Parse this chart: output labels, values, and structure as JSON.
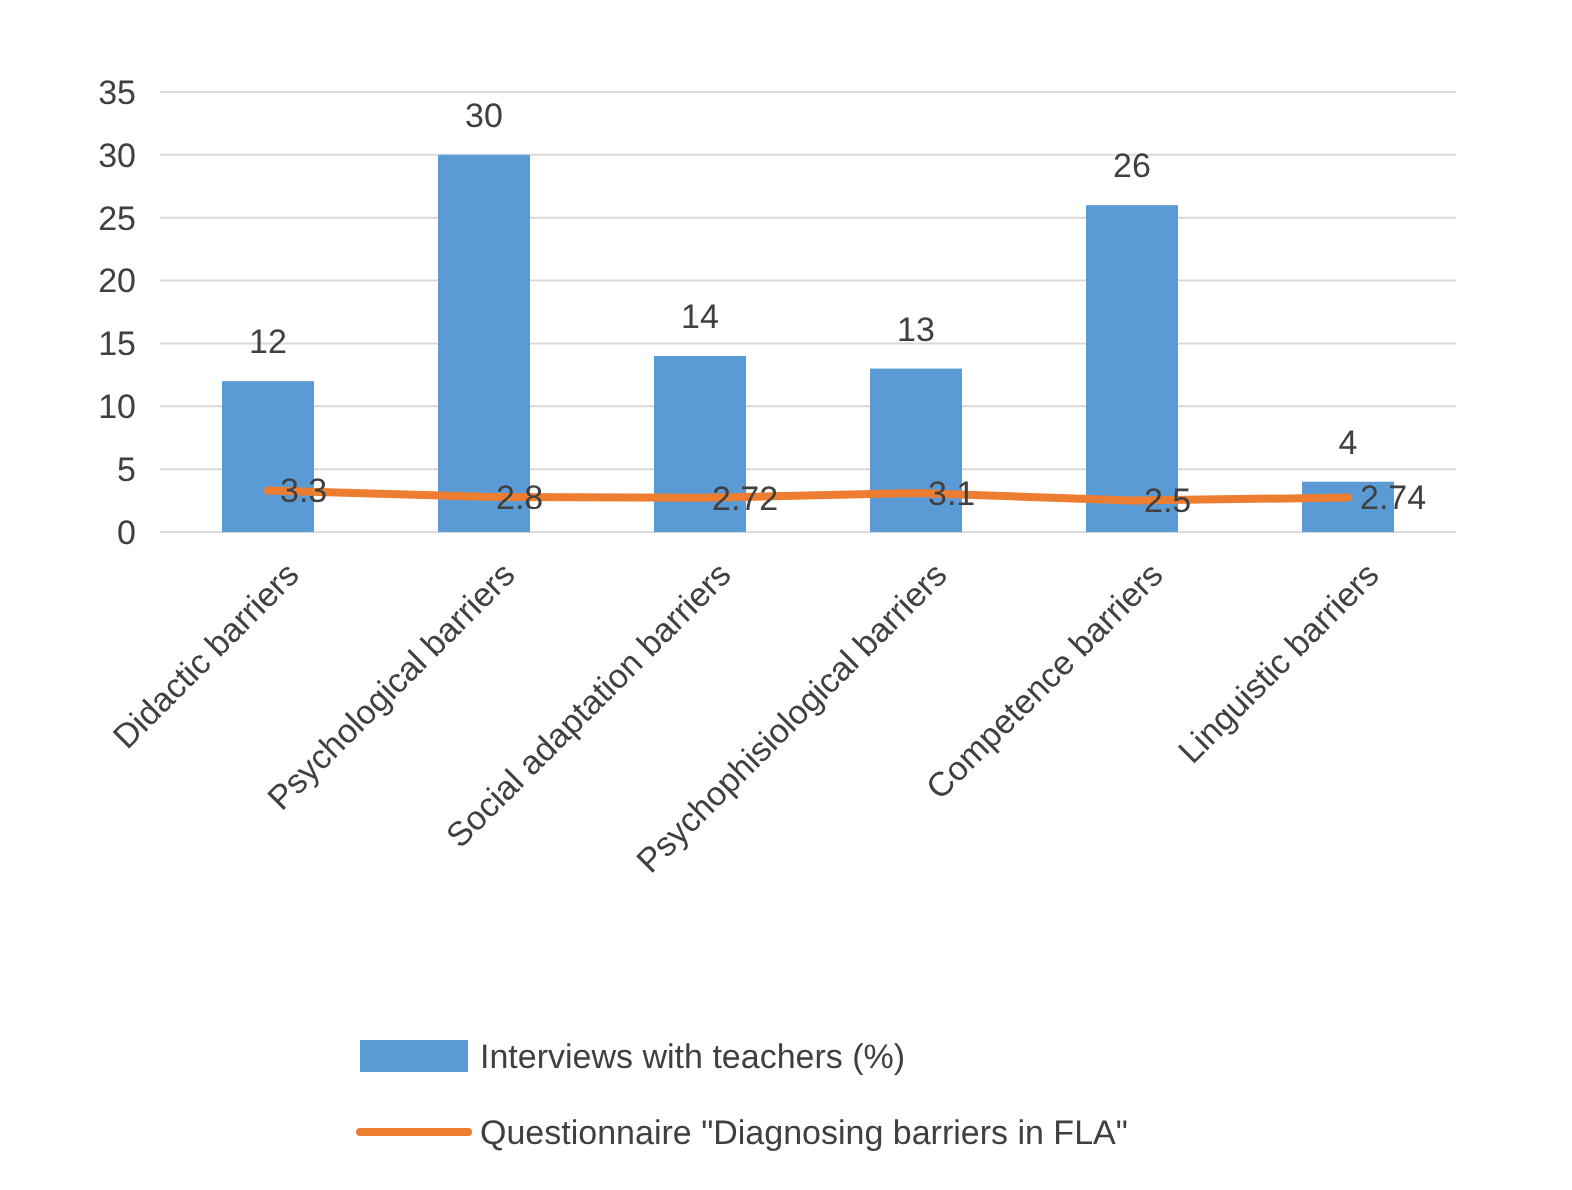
{
  "chart_data": {
    "type": "bar",
    "categories": [
      "Didactic barriers",
      "Psychological barriers",
      "Social adaptation barriers",
      "Psychophisiological barriers",
      "Competence barriers",
      "Linguistic barriers"
    ],
    "series": [
      {
        "name": "Interviews with teachers (%)",
        "color": "#5b9bd5",
        "values": [
          12,
          30,
          14,
          13,
          26,
          4
        ]
      },
      {
        "name": "Questionnaire \"Diagnosing barriers in FLA\"",
        "type": "line",
        "color": "#ed7d31",
        "values": [
          3.3,
          2.8,
          2.72,
          3.1,
          2.5,
          2.74
        ]
      }
    ],
    "ylim": [
      0,
      35
    ],
    "yticks": [
      0,
      5,
      10,
      15,
      20,
      25,
      30,
      35
    ],
    "grid": "y",
    "legend": "bottom",
    "data_labels": true,
    "marker": "none",
    "line_style": "solid"
  }
}
